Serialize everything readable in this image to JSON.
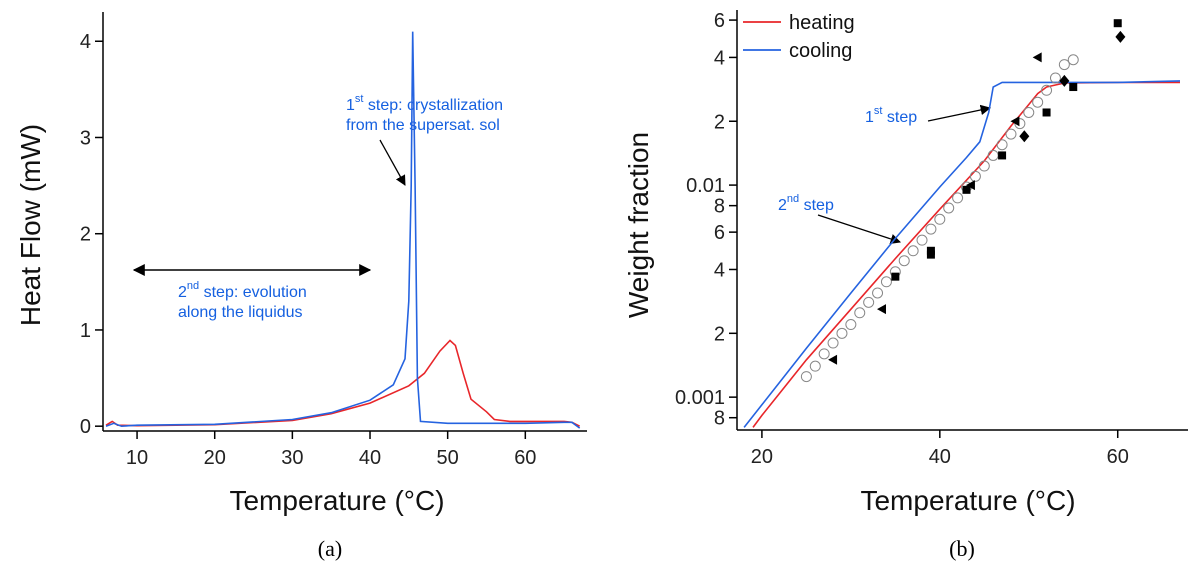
{
  "chart_data": [
    {
      "type": "line",
      "xlabel": "Temperature (°C)",
      "ylabel": "Heat Flow (mW)",
      "caption": "(a)",
      "xlim": [
        6,
        67.3
      ],
      "ylim": [
        -0.05,
        4.2
      ],
      "xticks": [
        10,
        20,
        30,
        40,
        50,
        60
      ],
      "yticks": [
        0,
        1,
        2,
        3,
        4
      ],
      "series": [
        {
          "name": "heating",
          "color": "#e8262a",
          "x": [
            6,
            6.8,
            7.5,
            10,
            20,
            30,
            35,
            40,
            45,
            47,
            49,
            50.3,
            51,
            52,
            53,
            55,
            56,
            58,
            65,
            66,
            67
          ],
          "values": [
            0.01,
            0.05,
            0.01,
            0.005,
            0.015,
            0.06,
            0.13,
            0.24,
            0.42,
            0.55,
            0.78,
            0.89,
            0.84,
            0.55,
            0.28,
            0.15,
            0.07,
            0.05,
            0.05,
            0.04,
            0.0
          ]
        },
        {
          "name": "cooling",
          "color": "#2563e0",
          "x": [
            6,
            7,
            8,
            10,
            20,
            30,
            35,
            40,
            43,
            44.5,
            45,
            45.3,
            45.5,
            45.8,
            46.1,
            46.5,
            50,
            60,
            65,
            66,
            67
          ],
          "values": [
            0.0,
            0.03,
            0.0,
            0.01,
            0.02,
            0.07,
            0.14,
            0.27,
            0.43,
            0.7,
            1.3,
            2.5,
            4.1,
            2.5,
            0.5,
            0.05,
            0.03,
            0.03,
            0.04,
            0.04,
            -0.02
          ]
        }
      ],
      "annotations": [
        {
          "pre": "1",
          "sup": "st",
          "post": " step: crystallization",
          "line2": "from the supersat. sol"
        },
        {
          "pre": "2",
          "sup": "nd",
          "post": " step: evolution",
          "line2": "along the liquidus"
        }
      ]
    },
    {
      "type": "line",
      "xlabel": "Temperature (°C)",
      "ylabel": "Weight fraction",
      "caption": "(b)",
      "xlim": [
        17.2,
        67.9
      ],
      "ylim": [
        0.0007,
        0.0655
      ],
      "log_y": true,
      "legend": "top-left",
      "xticks": [
        20,
        40,
        60
      ],
      "yticks": [
        {
          "value": 0.0008,
          "label": "8"
        },
        0.001,
        {
          "value": 0.002,
          "label": "2"
        },
        {
          "value": 0.004,
          "label": "4"
        },
        {
          "value": 0.006,
          "label": "6"
        },
        {
          "value": 0.008,
          "label": "8"
        },
        0.01,
        {
          "value": 0.02,
          "label": "2"
        },
        {
          "value": 0.04,
          "label": "4"
        },
        {
          "value": 0.06,
          "label": "6"
        }
      ],
      "series": [
        {
          "name": "heating",
          "color": "#e8262a",
          "x": [
            19,
            20,
            25,
            30,
            35,
            40,
            45,
            48,
            50,
            51,
            52,
            54,
            60,
            67
          ],
          "values": [
            0.00072,
            0.00082,
            0.0015,
            0.0026,
            0.0045,
            0.0077,
            0.013,
            0.019,
            0.024,
            0.027,
            0.029,
            0.0303,
            0.0305,
            0.0305
          ]
        },
        {
          "name": "cooling",
          "color": "#2563e0",
          "x": [
            18,
            20,
            25,
            30,
            35,
            40,
            43,
            44.5,
            45.5,
            46,
            47,
            50,
            55,
            60,
            67
          ],
          "values": [
            0.00072,
            0.00092,
            0.0017,
            0.0031,
            0.0056,
            0.0098,
            0.0135,
            0.016,
            0.022,
            0.029,
            0.0305,
            0.0305,
            0.0305,
            0.0305,
            0.031
          ]
        }
      ],
      "points": [
        {
          "marker": "circle",
          "color": "#888888",
          "x": [
            25,
            26,
            27,
            28,
            29,
            30,
            31,
            32,
            33,
            34,
            35,
            36,
            37,
            38,
            39,
            40,
            41,
            42,
            43,
            44,
            45,
            46,
            47,
            48,
            49,
            50,
            51,
            52,
            53,
            54,
            55
          ],
          "values": [
            0.00125,
            0.0014,
            0.0016,
            0.0018,
            0.002,
            0.0022,
            0.0025,
            0.0028,
            0.0031,
            0.0035,
            0.0039,
            0.0044,
            0.0049,
            0.0055,
            0.0062,
            0.0069,
            0.0078,
            0.0087,
            0.0098,
            0.011,
            0.0123,
            0.0138,
            0.0155,
            0.0174,
            0.0195,
            0.022,
            0.0246,
            0.028,
            0.032,
            0.037,
            0.039
          ]
        },
        {
          "marker": "square",
          "color": "#000000",
          "x": [
            35,
            39,
            39,
            43,
            47,
            52,
            55,
            60
          ],
          "values": [
            0.0037,
            0.0047,
            0.0049,
            0.0095,
            0.0138,
            0.022,
            0.029,
            0.058
          ]
        },
        {
          "marker": "triangle-left",
          "color": "#000000",
          "x": [
            28,
            33.5,
            43.5,
            48.5,
            51
          ],
          "values": [
            0.0015,
            0.0026,
            0.01,
            0.02,
            0.04
          ]
        },
        {
          "marker": "diamond",
          "color": "#000000",
          "x": [
            49.5,
            54,
            60.3
          ],
          "values": [
            0.017,
            0.031,
            0.05
          ]
        }
      ],
      "annotations": [
        {
          "pre": "1",
          "sup": "st",
          "post": " step"
        },
        {
          "pre": "2",
          "sup": "nd",
          "post": " step"
        }
      ]
    }
  ]
}
